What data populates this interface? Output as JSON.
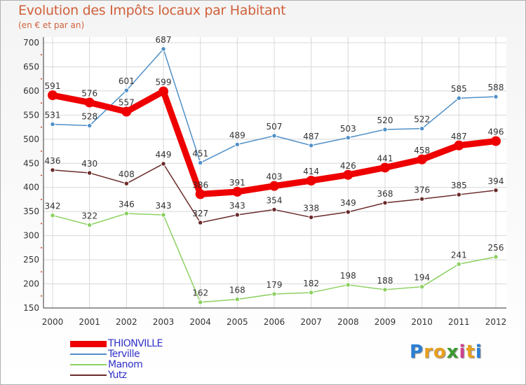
{
  "title": "Evolution des Impôts locaux par Habitant",
  "subtitle": "(en € et par an)",
  "logo": {
    "letters": [
      "P",
      "r",
      "o",
      "x",
      "i",
      "t",
      "i"
    ],
    "colors": [
      "#2a7fd4",
      "#e8a020",
      "#e8a020",
      "#3a9a30",
      "#d04090",
      "#e8a020",
      "#2a7fd4"
    ]
  },
  "chart_data": {
    "type": "line",
    "x": [
      "2000",
      "2001",
      "2002",
      "2003",
      "2004",
      "2005",
      "2006",
      "2007",
      "2008",
      "2009",
      "2010",
      "2011",
      "2012"
    ],
    "ylim": [
      150,
      700
    ],
    "yticks": [
      150,
      200,
      250,
      300,
      350,
      400,
      450,
      500,
      550,
      600,
      650,
      700
    ],
    "grid": true,
    "legend_position": "bottom-left",
    "series": [
      {
        "name": "Terville",
        "color": "#5090c8",
        "values": [
          531,
          528,
          601,
          687,
          451,
          489,
          507,
          487,
          503,
          520,
          522,
          585,
          588
        ]
      },
      {
        "name": "Yutz",
        "color": "#6a2a2a",
        "values": [
          436,
          430,
          408,
          449,
          327,
          343,
          354,
          338,
          349,
          368,
          376,
          385,
          394
        ]
      },
      {
        "name": "Manom",
        "color": "#8cd060",
        "values": [
          342,
          322,
          346,
          343,
          162,
          168,
          179,
          182,
          198,
          188,
          194,
          241,
          256
        ]
      },
      {
        "name": "THIONVILLE",
        "color": "#ee0000",
        "values": [
          591,
          576,
          557,
          599,
          386,
          391,
          403,
          414,
          426,
          441,
          458,
          487,
          496
        ]
      }
    ],
    "legend_order": [
      "THIONVILLE",
      "Terville",
      "Manom",
      "Yutz"
    ]
  }
}
